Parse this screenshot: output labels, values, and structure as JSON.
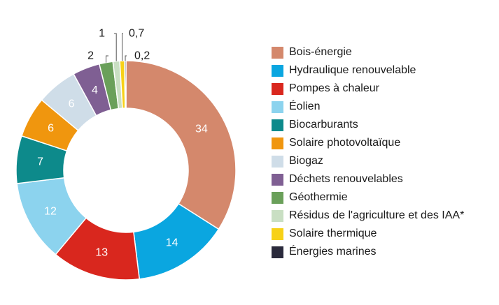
{
  "chart_data": {
    "type": "pie",
    "variant": "donut",
    "series": [
      {
        "name": "Bois-énergie",
        "value": 34,
        "label": "34",
        "color": "#d4886c"
      },
      {
        "name": "Hydraulique renouvelable",
        "value": 14,
        "label": "14",
        "color": "#0aa6e0"
      },
      {
        "name": "Pompes à chaleur",
        "value": 13,
        "label": "13",
        "color": "#d9271e"
      },
      {
        "name": "Éolien",
        "value": 12,
        "label": "12",
        "color": "#8cd3ee"
      },
      {
        "name": "Biocarburants",
        "value": 7,
        "label": "7",
        "color": "#0d8a8b"
      },
      {
        "name": "Solaire photovoltaïque",
        "value": 6,
        "label": "6",
        "color": "#f0960e"
      },
      {
        "name": "Biogaz",
        "value": 6,
        "label": "6",
        "color": "#cfdde8"
      },
      {
        "name": "Déchets renouvelables",
        "value": 4,
        "label": "4",
        "color": "#7f5f93"
      },
      {
        "name": "Géothermie",
        "value": 2,
        "label": "2",
        "color": "#6aa05a"
      },
      {
        "name": "Résidus de l'agriculture et des IAA*",
        "value": 1,
        "label": "1",
        "color": "#c9dfc3"
      },
      {
        "name": "Solaire thermique",
        "value": 0.7,
        "label": "0,7",
        "color": "#f7d117"
      },
      {
        "name": "Énergies marines",
        "value": 0.2,
        "label": "0,2",
        "color": "#2a2a3c"
      }
    ],
    "legend_position": "right",
    "start_angle": "top, clockwise"
  }
}
